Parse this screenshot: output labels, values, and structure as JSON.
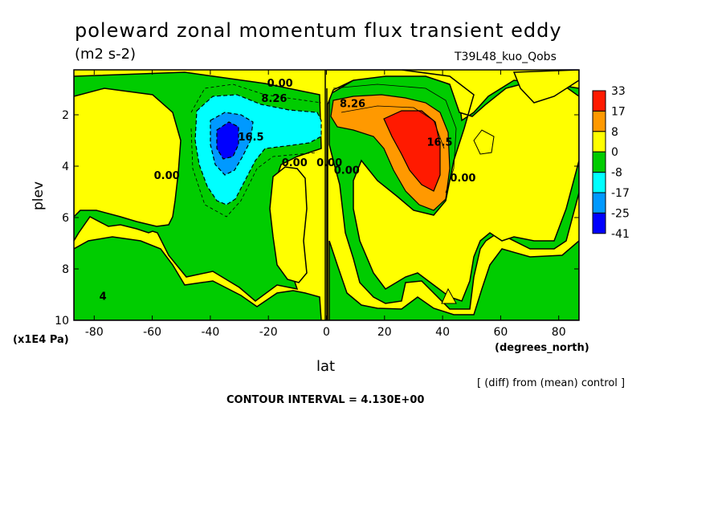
{
  "chart_data": {
    "type": "heatmap",
    "title": "poleward zonal momentum flux transient eddy",
    "units": "(m2 s-2)",
    "run_label": "T39L48_kuo_Qobs",
    "xlabel": "lat",
    "xunits": "(degrees_north)",
    "ylabel": "plev",
    "yunits": "(x1E4 Pa)",
    "note": "[ (diff) from (mean) control ]",
    "contour_interval": "CONTOUR INTERVAL = 4.130E+00",
    "xlim": [
      -87,
      87
    ],
    "ylim": [
      10,
      0.25
    ],
    "x_ticks": [
      -80,
      -60,
      -40,
      -20,
      0,
      20,
      40,
      60,
      80
    ],
    "x_tick_labels": [
      "-80",
      "-60",
      "-40",
      "-20",
      "0",
      "20",
      "40",
      "60",
      "80"
    ],
    "y_ticks": [
      2,
      4,
      6,
      8,
      10
    ],
    "y_tick_labels": [
      "2",
      "4",
      "6",
      "8",
      "10"
    ],
    "colorbar": {
      "labels": [
        "33",
        "17",
        "8",
        "0",
        "-8",
        "-17",
        "-25",
        "-41"
      ],
      "colors": [
        "#ff1a00",
        "#ff9900",
        "#ffff00",
        "#00cc00",
        "#00ffff",
        "#0099ff",
        "#0000ff"
      ]
    },
    "contour_labels": [
      {
        "text": "0.00",
        "x": -16,
        "y": 0.9
      },
      {
        "text": "8.26",
        "x": -18,
        "y": 1.5
      },
      {
        "text": "16.5",
        "x": -26,
        "y": 3.0
      },
      {
        "text": "0.00",
        "x": -55,
        "y": 4.5
      },
      {
        "text": "0.00",
        "x": -11,
        "y": 4.0
      },
      {
        "text": "0.00",
        "x": 1,
        "y": 4.0
      },
      {
        "text": "0.00",
        "x": 7,
        "y": 4.3
      },
      {
        "text": "8.26",
        "x": 9,
        "y": 1.7
      },
      {
        "text": "16.5",
        "x": 39,
        "y": 3.2
      },
      {
        "text": "0.00",
        "x": 47,
        "y": 4.6
      },
      {
        "text": "4",
        "x": -77,
        "y": 9.2
      }
    ],
    "features": [
      {
        "name": "negative center",
        "lat": -35,
        "plev": 2.8,
        "min_band": "-25"
      },
      {
        "name": "positive center",
        "lat": 32,
        "plev": 2.5,
        "max_band": "33"
      }
    ]
  }
}
